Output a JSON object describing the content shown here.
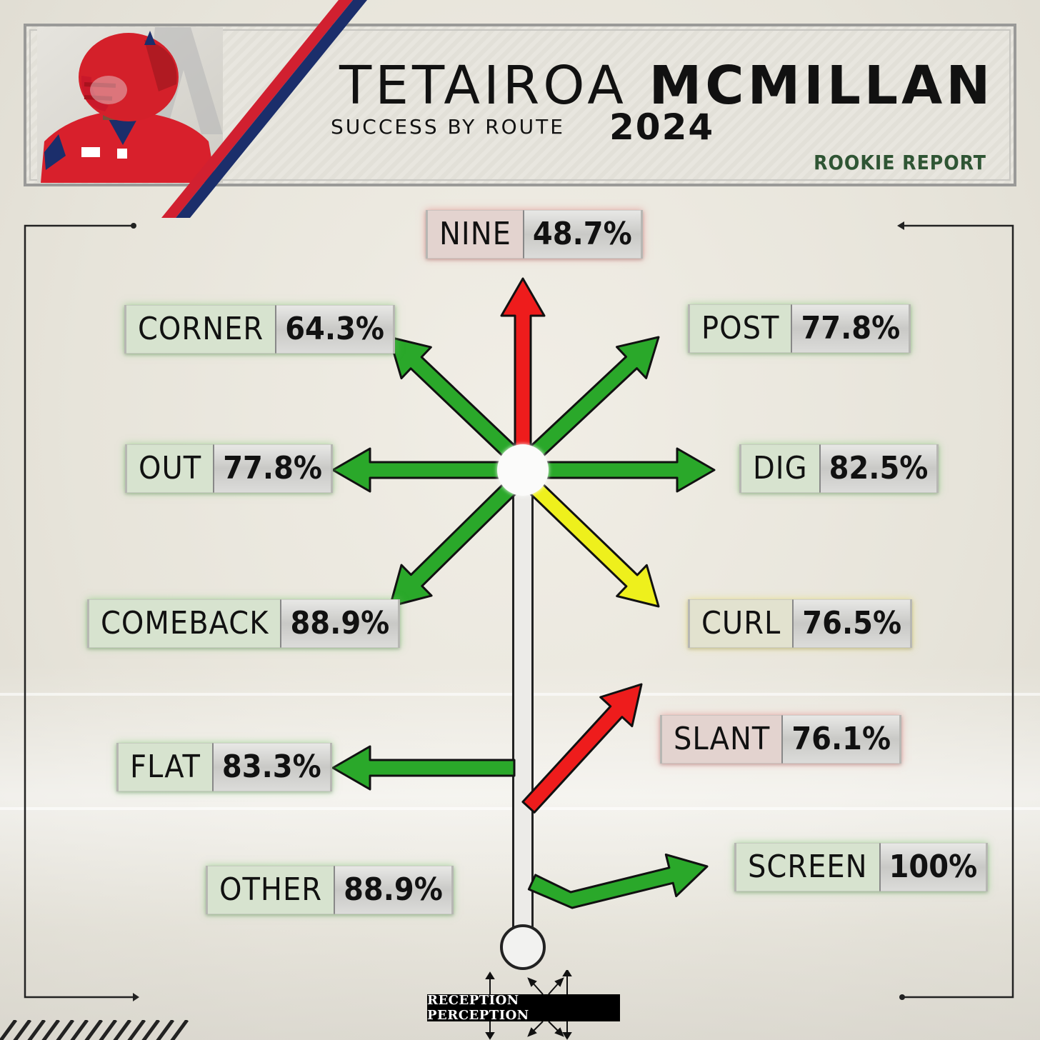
{
  "header": {
    "first_name": "TETAIROA",
    "last_name": "MCMILLAN",
    "subtitle": "SUCCESS BY ROUTE",
    "year": "2024",
    "tag": "ROOKIE REPORT"
  },
  "colors": {
    "green": "#2aa82a",
    "red": "#ee1c1c",
    "yellow": "#eef01c",
    "stripe_red": "#d12030",
    "stripe_blue": "#1b2e6b"
  },
  "routes": [
    {
      "name": "NINE",
      "value": "48.7%",
      "color": "red"
    },
    {
      "name": "CORNER",
      "value": "64.3%",
      "color": "green"
    },
    {
      "name": "POST",
      "value": "77.8%",
      "color": "green"
    },
    {
      "name": "OUT",
      "value": "77.8%",
      "color": "green"
    },
    {
      "name": "DIG",
      "value": "82.5%",
      "color": "green"
    },
    {
      "name": "COMEBACK",
      "value": "88.9%",
      "color": "green"
    },
    {
      "name": "CURL",
      "value": "76.5%",
      "color": "yellow"
    },
    {
      "name": "SLANT",
      "value": "76.1%",
      "color": "red"
    },
    {
      "name": "FLAT",
      "value": "83.3%",
      "color": "green"
    },
    {
      "name": "SCREEN",
      "value": "100%",
      "color": "green"
    },
    {
      "name": "OTHER",
      "value": "88.9%",
      "color": "green"
    }
  ],
  "logo": {
    "text": "RECEPTION PERCEPTION"
  }
}
